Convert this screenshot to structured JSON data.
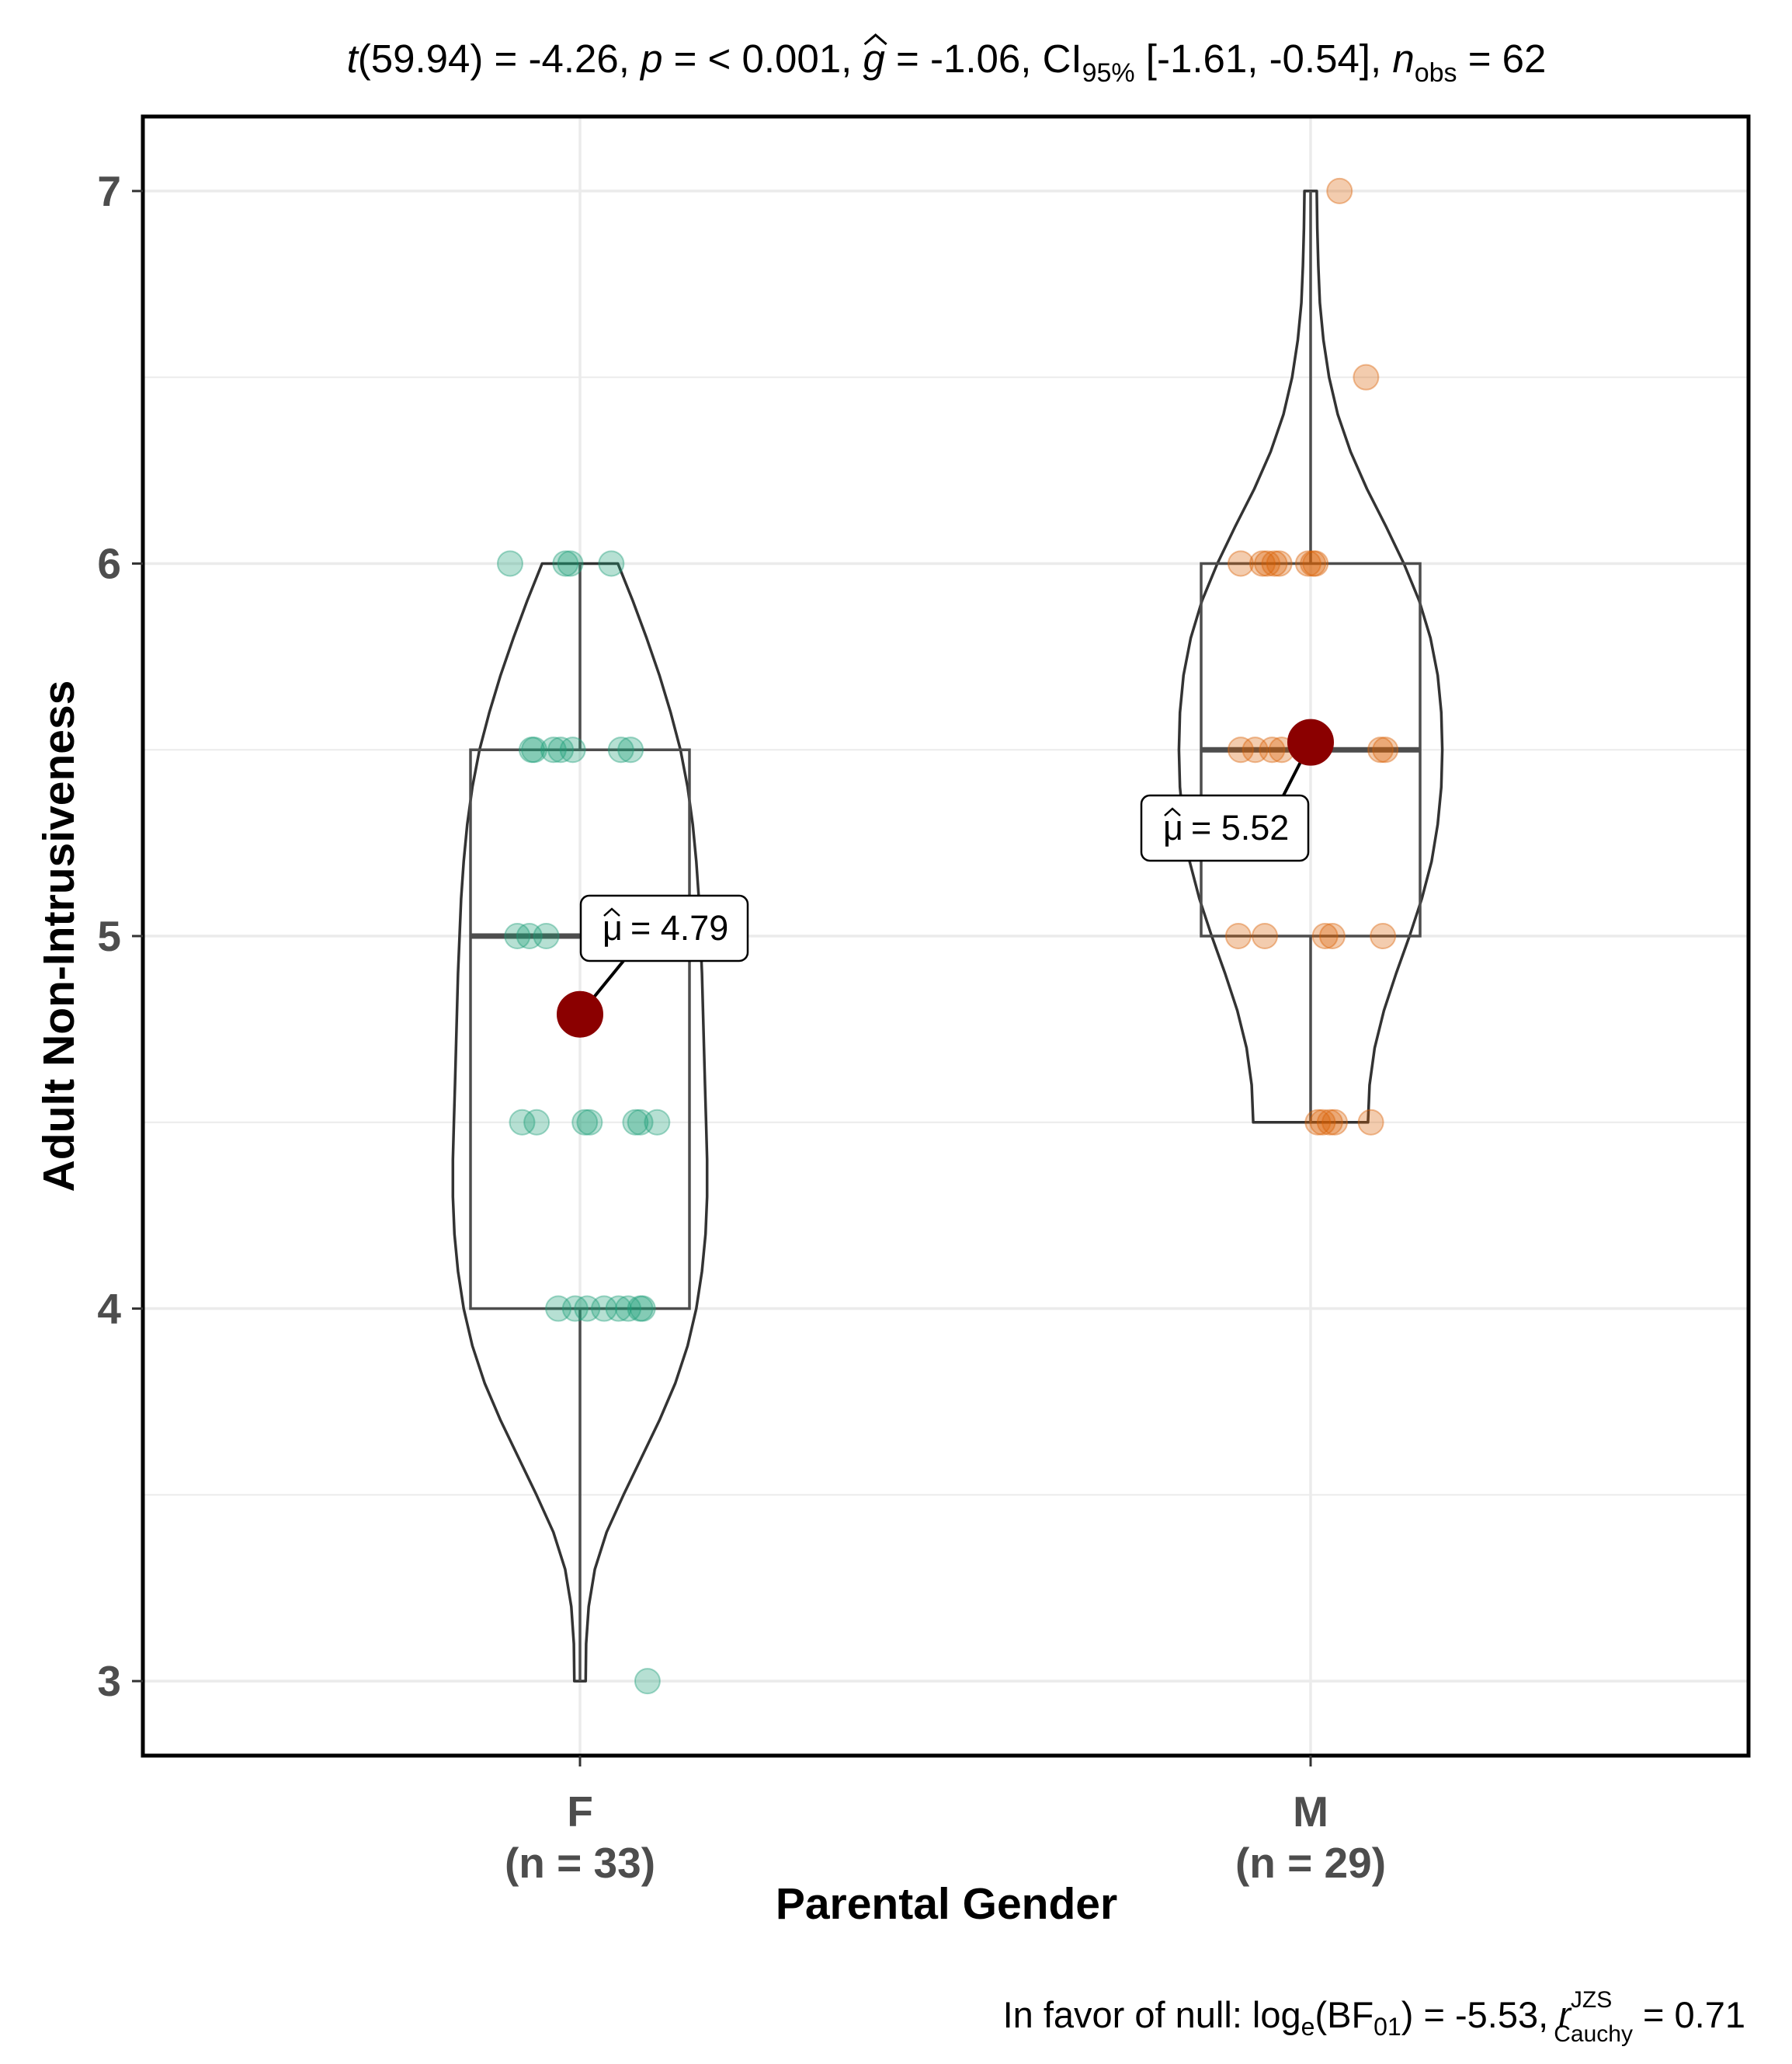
{
  "chart_data": {
    "type": "violin-box-scatter",
    "subtitle": {
      "t_label": "t",
      "df": "(59.94) = -4.26, ",
      "p_label": "p",
      "p_value": " = < 0.001, ",
      "g_label": "g",
      "g_value": " = -1.06, CI",
      "ci_sub": "95%",
      "ci_value": " [-1.61, -0.54], ",
      "n_label": "n",
      "n_sub": "obs",
      "n_value": " = 62"
    },
    "caption": {
      "prefix": "In favor of null: log",
      "log_sub": "e",
      "bf": "(BF",
      "bf_sub": "01",
      "mid": ") = -5.53, ",
      "r_label": "r",
      "r_sup": "JZS",
      "r_sub": "Cauchy",
      "r_value": " = 0.71"
    },
    "xlabel": "Parental Gender",
    "ylabel": "Adult Non-Intrusiveness",
    "ylim": [
      2.8,
      7.2
    ],
    "yticks": [
      "3",
      "4",
      "5",
      "6",
      "7"
    ],
    "groups": [
      {
        "name": "F",
        "n_label": "(n = 33)",
        "color": "#1b9e77",
        "mean": 4.79,
        "mean_label": "μ = 4.79",
        "mean_symbol": "μ",
        "mean_value": "= 4.79",
        "box": {
          "q1": 4.0,
          "median": 5.0,
          "q3": 5.5,
          "whisker_low": 3.0,
          "whisker_high": 6.0
        },
        "violin": {
          "y": [
            3.0,
            3.1,
            3.2,
            3.3,
            3.4,
            3.5,
            3.6,
            3.7,
            3.8,
            3.9,
            4.0,
            4.1,
            4.2,
            4.3,
            4.4,
            4.5,
            4.6,
            4.7,
            4.8,
            4.9,
            5.0,
            5.1,
            5.2,
            5.3,
            5.4,
            5.5,
            5.6,
            5.7,
            5.8,
            5.9,
            6.0
          ],
          "halfwidth": [
            0.11,
            0.12,
            0.17,
            0.29,
            0.52,
            0.85,
            1.2,
            1.55,
            1.86,
            2.1,
            2.27,
            2.38,
            2.45,
            2.48,
            2.48,
            2.46,
            2.44,
            2.42,
            2.4,
            2.38,
            2.35,
            2.32,
            2.27,
            2.2,
            2.1,
            1.96,
            1.77,
            1.55,
            1.3,
            1.03,
            0.74
          ]
        },
        "points": [
          {
            "x": -0.29,
            "y": 6.0
          },
          {
            "x": -0.06,
            "y": 6.0
          },
          {
            "x": -0.04,
            "y": 6.0
          },
          {
            "x": 0.13,
            "y": 6.0
          },
          {
            "x": -0.2,
            "y": 5.5
          },
          {
            "x": -0.19,
            "y": 5.5
          },
          {
            "x": -0.11,
            "y": 5.5
          },
          {
            "x": -0.08,
            "y": 5.5
          },
          {
            "x": -0.03,
            "y": 5.5
          },
          {
            "x": 0.17,
            "y": 5.5
          },
          {
            "x": 0.21,
            "y": 5.5
          },
          {
            "x": -0.26,
            "y": 5.0
          },
          {
            "x": -0.21,
            "y": 5.0
          },
          {
            "x": -0.14,
            "y": 5.0
          },
          {
            "x": -0.24,
            "y": 4.5
          },
          {
            "x": -0.18,
            "y": 4.5
          },
          {
            "x": 0.02,
            "y": 4.5
          },
          {
            "x": 0.04,
            "y": 4.5
          },
          {
            "x": 0.23,
            "y": 4.5
          },
          {
            "x": 0.25,
            "y": 4.5
          },
          {
            "x": 0.32,
            "y": 4.5
          },
          {
            "x": -0.09,
            "y": 4.0
          },
          {
            "x": -0.02,
            "y": 4.0
          },
          {
            "x": 0.03,
            "y": 4.0
          },
          {
            "x": 0.1,
            "y": 4.0
          },
          {
            "x": 0.16,
            "y": 4.0
          },
          {
            "x": 0.2,
            "y": 4.0
          },
          {
            "x": 0.25,
            "y": 4.0
          },
          {
            "x": 0.26,
            "y": 4.0
          },
          {
            "x": 0.28,
            "y": 3.0
          }
        ]
      },
      {
        "name": "M",
        "n_label": "(n = 29)",
        "color": "#d95f02",
        "mean": 5.52,
        "mean_label": "μ = 5.52",
        "mean_symbol": "μ",
        "mean_value": "= 5.52",
        "box": {
          "q1": 5.0,
          "median": 5.5,
          "q3": 6.0,
          "whisker_low": 4.5,
          "whisker_high": 7.0
        },
        "violin": {
          "y": [
            4.5,
            4.6,
            4.7,
            4.8,
            4.9,
            5.0,
            5.1,
            5.2,
            5.3,
            5.4,
            5.5,
            5.6,
            5.7,
            5.8,
            5.9,
            6.0,
            6.1,
            6.2,
            6.3,
            6.4,
            6.5,
            6.6,
            6.7,
            6.8,
            6.9,
            7.0
          ],
          "halfwidth": [
            1.12,
            1.15,
            1.25,
            1.43,
            1.67,
            1.93,
            2.17,
            2.36,
            2.48,
            2.55,
            2.57,
            2.55,
            2.48,
            2.34,
            2.12,
            1.82,
            1.47,
            1.1,
            0.78,
            0.53,
            0.36,
            0.25,
            0.18,
            0.15,
            0.13,
            0.12
          ]
        },
        "points": [
          {
            "x": 0.12,
            "y": 7.0
          },
          {
            "x": 0.23,
            "y": 6.5
          },
          {
            "x": -0.29,
            "y": 6.0
          },
          {
            "x": -0.2,
            "y": 6.0
          },
          {
            "x": -0.18,
            "y": 6.0
          },
          {
            "x": -0.15,
            "y": 6.0
          },
          {
            "x": -0.13,
            "y": 6.0
          },
          {
            "x": -0.01,
            "y": 6.0
          },
          {
            "x": 0.01,
            "y": 6.0
          },
          {
            "x": 0.02,
            "y": 6.0
          },
          {
            "x": -0.29,
            "y": 5.5
          },
          {
            "x": -0.23,
            "y": 5.5
          },
          {
            "x": -0.16,
            "y": 5.5
          },
          {
            "x": -0.12,
            "y": 5.5
          },
          {
            "x": 0.29,
            "y": 5.5
          },
          {
            "x": 0.31,
            "y": 5.5
          },
          {
            "x": -0.3,
            "y": 5.0
          },
          {
            "x": -0.19,
            "y": 5.0
          },
          {
            "x": 0.06,
            "y": 5.0
          },
          {
            "x": 0.09,
            "y": 5.0
          },
          {
            "x": 0.3,
            "y": 5.0
          },
          {
            "x": 0.03,
            "y": 4.5
          },
          {
            "x": 0.05,
            "y": 4.5
          },
          {
            "x": 0.08,
            "y": 4.5
          },
          {
            "x": 0.1,
            "y": 4.5
          },
          {
            "x": 0.25,
            "y": 4.5
          }
        ]
      }
    ],
    "colors": {
      "violin_outline": "#333333",
      "box_outline": "#4d4d4d",
      "mean_point": "#8b0000",
      "grid": "#ebebeb",
      "panel_border": "#000000"
    }
  }
}
